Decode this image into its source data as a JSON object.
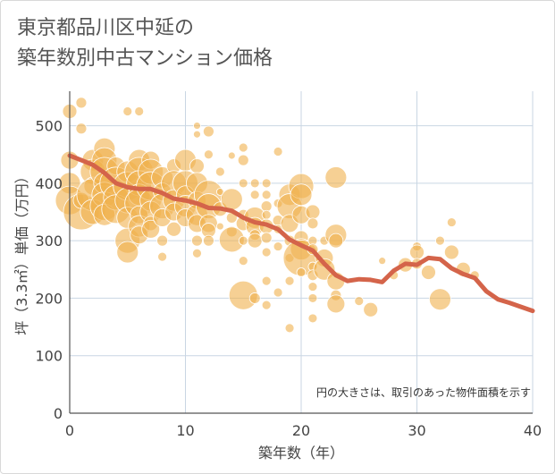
{
  "title_lines": [
    "東京都品川区中延の",
    "築年数別中古マンション価格"
  ],
  "chart_data": {
    "type": "scatter",
    "xlabel": "築年数（年）",
    "ylabel": "坪（3.3㎡）単価（万円）",
    "xlim": [
      0,
      40
    ],
    "ylim": [
      0,
      560
    ],
    "xticks": [
      0,
      10,
      20,
      30,
      40
    ],
    "yticks": [
      0,
      100,
      200,
      300,
      400,
      500
    ],
    "grid": true,
    "annotation": "円の大きさは、取引のあった物件面積を示す",
    "colors": {
      "bubble": "#f0b14d",
      "trend": "#d4644a",
      "grid": "#c9d6e3",
      "axis": "#555555"
    },
    "points": [
      [
        0,
        525,
        8
      ],
      [
        0,
        440,
        10
      ],
      [
        0,
        400,
        12
      ],
      [
        0,
        370,
        16
      ],
      [
        1,
        540,
        6
      ],
      [
        1,
        495,
        6
      ],
      [
        1,
        350,
        20
      ],
      [
        1,
        370,
        9
      ],
      [
        2,
        440,
        12
      ],
      [
        2,
        420,
        14
      ],
      [
        2,
        395,
        10
      ],
      [
        2,
        380,
        18
      ],
      [
        2,
        350,
        14
      ],
      [
        3,
        460,
        12
      ],
      [
        3,
        440,
        14
      ],
      [
        3,
        420,
        16
      ],
      [
        3,
        400,
        12
      ],
      [
        3,
        380,
        14
      ],
      [
        3,
        360,
        16
      ],
      [
        3,
        345,
        12
      ],
      [
        4,
        430,
        10
      ],
      [
        4,
        400,
        18
      ],
      [
        4,
        375,
        14
      ],
      [
        4,
        355,
        16
      ],
      [
        5,
        525,
        5
      ],
      [
        5,
        420,
        12
      ],
      [
        5,
        395,
        16
      ],
      [
        5,
        370,
        14
      ],
      [
        5,
        340,
        12
      ],
      [
        5,
        300,
        14
      ],
      [
        5,
        280,
        12
      ],
      [
        6,
        525,
        5
      ],
      [
        6,
        440,
        12
      ],
      [
        6,
        420,
        16
      ],
      [
        6,
        400,
        14
      ],
      [
        6,
        380,
        12
      ],
      [
        6,
        365,
        16
      ],
      [
        6,
        345,
        10
      ],
      [
        6,
        325,
        12
      ],
      [
        6,
        310,
        10
      ],
      [
        7,
        440,
        10
      ],
      [
        7,
        420,
        14
      ],
      [
        7,
        395,
        16
      ],
      [
        7,
        370,
        12
      ],
      [
        7,
        350,
        12
      ],
      [
        7,
        330,
        8
      ],
      [
        7,
        320,
        10
      ],
      [
        8,
        410,
        12
      ],
      [
        8,
        385,
        10
      ],
      [
        8,
        360,
        14
      ],
      [
        8,
        340,
        10
      ],
      [
        8,
        300,
        6
      ],
      [
        8,
        272,
        5
      ],
      [
        9,
        430,
        8
      ],
      [
        9,
        400,
        14
      ],
      [
        9,
        370,
        12
      ],
      [
        9,
        350,
        10
      ],
      [
        9,
        320,
        8
      ],
      [
        10,
        440,
        12
      ],
      [
        10,
        400,
        14
      ],
      [
        10,
        380,
        10
      ],
      [
        10,
        360,
        12
      ],
      [
        10,
        340,
        10
      ],
      [
        11,
        500,
        4
      ],
      [
        11,
        485,
        4
      ],
      [
        11,
        430,
        8
      ],
      [
        11,
        400,
        12
      ],
      [
        11,
        370,
        10
      ],
      [
        11,
        345,
        12
      ],
      [
        11,
        330,
        10
      ],
      [
        11,
        300,
        6
      ],
      [
        11,
        278,
        5
      ],
      [
        12,
        490,
        6
      ],
      [
        12,
        450,
        5
      ],
      [
        12,
        380,
        16
      ],
      [
        12,
        360,
        14
      ],
      [
        12,
        330,
        10
      ],
      [
        12,
        318,
        8
      ],
      [
        12,
        300,
        6
      ],
      [
        13,
        420,
        5
      ],
      [
        13,
        385,
        4
      ],
      [
        13,
        355,
        8
      ],
      [
        13,
        325,
        4
      ],
      [
        14,
        448,
        4
      ],
      [
        14,
        372,
        12
      ],
      [
        14,
        340,
        6
      ],
      [
        14,
        316,
        6
      ],
      [
        14,
        302,
        14
      ],
      [
        15,
        462,
        5
      ],
      [
        15,
        440,
        6
      ],
      [
        15,
        400,
        5
      ],
      [
        15,
        345,
        6
      ],
      [
        15,
        330,
        8
      ],
      [
        15,
        300,
        5
      ],
      [
        15,
        265,
        5
      ],
      [
        15,
        205,
        16
      ],
      [
        16,
        400,
        5
      ],
      [
        16,
        380,
        5
      ],
      [
        16,
        340,
        12
      ],
      [
        16,
        325,
        10
      ],
      [
        16,
        310,
        6
      ],
      [
        16,
        300,
        8
      ],
      [
        16,
        200,
        6
      ],
      [
        17,
        400,
        5
      ],
      [
        17,
        380,
        5
      ],
      [
        17,
        360,
        6
      ],
      [
        17,
        345,
        5
      ],
      [
        17,
        325,
        8
      ],
      [
        17,
        305,
        6
      ],
      [
        17,
        280,
        5
      ],
      [
        17,
        230,
        5
      ],
      [
        17,
        188,
        5
      ],
      [
        18,
        455,
        5
      ],
      [
        18,
        365,
        5
      ],
      [
        18,
        335,
        6
      ],
      [
        18,
        320,
        5
      ],
      [
        18,
        290,
        5
      ],
      [
        18,
        210,
        5
      ],
      [
        19,
        380,
        12
      ],
      [
        19,
        360,
        14
      ],
      [
        19,
        330,
        10
      ],
      [
        19,
        300,
        6
      ],
      [
        19,
        270,
        5
      ],
      [
        19,
        230,
        5
      ],
      [
        19,
        148,
        5
      ],
      [
        20,
        395,
        14
      ],
      [
        20,
        380,
        12
      ],
      [
        20,
        345,
        10
      ],
      [
        20,
        305,
        8
      ],
      [
        20,
        285,
        12
      ],
      [
        20,
        270,
        20
      ],
      [
        20,
        245,
        5
      ],
      [
        21,
        350,
        8
      ],
      [
        21,
        330,
        6
      ],
      [
        21,
        300,
        5
      ],
      [
        21,
        285,
        6
      ],
      [
        21,
        255,
        5
      ],
      [
        21,
        240,
        6
      ],
      [
        21,
        220,
        5
      ],
      [
        21,
        200,
        5
      ],
      [
        21,
        165,
        5
      ],
      [
        22,
        300,
        5
      ],
      [
        22,
        270,
        10
      ],
      [
        22,
        250,
        12
      ],
      [
        23,
        410,
        12
      ],
      [
        23,
        310,
        12
      ],
      [
        23,
        300,
        8
      ],
      [
        23,
        230,
        10
      ],
      [
        23,
        205,
        6
      ],
      [
        23,
        190,
        10
      ],
      [
        25,
        195,
        5
      ],
      [
        26,
        180,
        8
      ],
      [
        27,
        265,
        4
      ],
      [
        28,
        240,
        5
      ],
      [
        29,
        258,
        8
      ],
      [
        30,
        290,
        5
      ],
      [
        30,
        280,
        8
      ],
      [
        30,
        260,
        6
      ],
      [
        31,
        245,
        8
      ],
      [
        32,
        300,
        5
      ],
      [
        32,
        198,
        12
      ],
      [
        33,
        332,
        5
      ],
      [
        33,
        280,
        8
      ],
      [
        34,
        250,
        8
      ],
      [
        35,
        240,
        5
      ]
    ],
    "trend": [
      [
        0,
        448
      ],
      [
        1,
        440
      ],
      [
        2,
        432
      ],
      [
        3,
        418
      ],
      [
        4,
        400
      ],
      [
        5,
        393
      ],
      [
        6,
        390
      ],
      [
        7,
        390
      ],
      [
        8,
        383
      ],
      [
        9,
        373
      ],
      [
        10,
        370
      ],
      [
        11,
        365
      ],
      [
        12,
        357
      ],
      [
        13,
        356
      ],
      [
        14,
        352
      ],
      [
        15,
        340
      ],
      [
        16,
        332
      ],
      [
        17,
        328
      ],
      [
        18,
        320
      ],
      [
        19,
        302
      ],
      [
        20,
        292
      ],
      [
        21,
        283
      ],
      [
        22,
        260
      ],
      [
        23,
        240
      ],
      [
        24,
        230
      ],
      [
        25,
        233
      ],
      [
        26,
        232
      ],
      [
        27,
        228
      ],
      [
        28,
        248
      ],
      [
        29,
        260
      ],
      [
        30,
        258
      ],
      [
        31,
        270
      ],
      [
        32,
        268
      ],
      [
        33,
        252
      ],
      [
        34,
        242
      ],
      [
        35,
        235
      ],
      [
        36,
        212
      ],
      [
        37,
        198
      ],
      [
        38,
        192
      ],
      [
        39,
        185
      ],
      [
        40,
        178
      ]
    ]
  }
}
